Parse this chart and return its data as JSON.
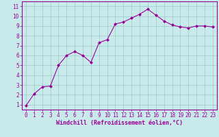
{
  "x": [
    0,
    1,
    2,
    3,
    4,
    5,
    6,
    7,
    8,
    9,
    10,
    11,
    12,
    13,
    14,
    15,
    16,
    17,
    18,
    19,
    20,
    21,
    22,
    23
  ],
  "y": [
    0.9,
    2.1,
    2.8,
    2.9,
    5.0,
    6.0,
    6.4,
    6.0,
    5.3,
    7.3,
    7.6,
    9.2,
    9.4,
    9.8,
    10.2,
    10.7,
    10.1,
    9.5,
    9.1,
    8.9,
    8.8,
    9.0,
    9.0,
    8.9
  ],
  "line_color": "#990099",
  "marker": "D",
  "marker_size": 2,
  "bg_color": "#c8eaea",
  "grid_color": "#9ec8c8",
  "xlabel": "Windchill (Refroidissement éolien,°C)",
  "xlabel_color": "#990099",
  "tick_color": "#990099",
  "xlim": [
    -0.5,
    23.5
  ],
  "ylim": [
    0.5,
    11.5
  ],
  "yticks": [
    1,
    2,
    3,
    4,
    5,
    6,
    7,
    8,
    9,
    10,
    11
  ],
  "xticks": [
    0,
    1,
    2,
    3,
    4,
    5,
    6,
    7,
    8,
    9,
    10,
    11,
    12,
    13,
    14,
    15,
    16,
    17,
    18,
    19,
    20,
    21,
    22,
    23
  ],
  "spine_color": "#990099",
  "tick_font_size": 5.5,
  "label_font_size": 6.0
}
